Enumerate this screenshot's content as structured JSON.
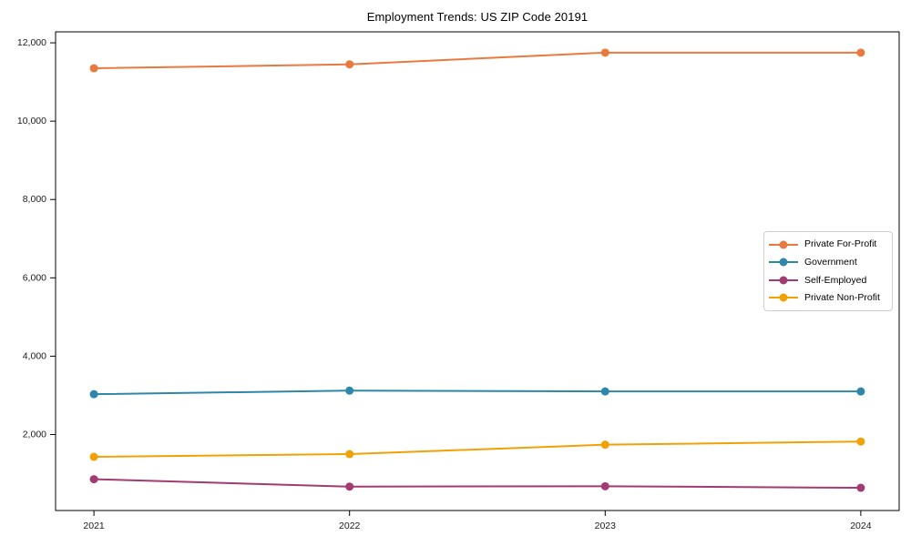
{
  "title": "Employment Trends: US ZIP Code 20191",
  "chart_data": {
    "type": "line",
    "title": "Employment Trends: US ZIP Code 20191",
    "xlabel": "",
    "ylabel": "",
    "x": [
      2021,
      2022,
      2023,
      2024
    ],
    "x_tick_labels": [
      "2021",
      "2022",
      "2023",
      "2024"
    ],
    "y_ticks": [
      2000,
      4000,
      6000,
      8000,
      10000,
      12000
    ],
    "y_tick_labels": [
      "2,000",
      "4,000",
      "6,000",
      "8,000",
      "10,000",
      "12,000"
    ],
    "series": [
      {
        "name": "Private For-Profit",
        "color": "#E8793F",
        "values": [
          11350,
          11450,
          11750,
          11750
        ]
      },
      {
        "name": "Government",
        "color": "#2E86AB",
        "values": [
          3030,
          3120,
          3100,
          3100
        ]
      },
      {
        "name": "Self-Employed",
        "color": "#A23B72",
        "values": [
          860,
          670,
          680,
          640
        ]
      },
      {
        "name": "Private Non-Profit",
        "color": "#F2A104",
        "values": [
          1430,
          1500,
          1740,
          1820
        ]
      }
    ],
    "xlim": [
      2020.85,
      2024.15
    ],
    "ylim": [
      60,
      12280
    ],
    "grid": false,
    "legend_position": "center right",
    "marker": "circle",
    "colors": {
      "spine": "#000000",
      "tick_label": "#1a1a1a",
      "legend_border": "#cfcfcf",
      "background": "#ffffff"
    }
  }
}
